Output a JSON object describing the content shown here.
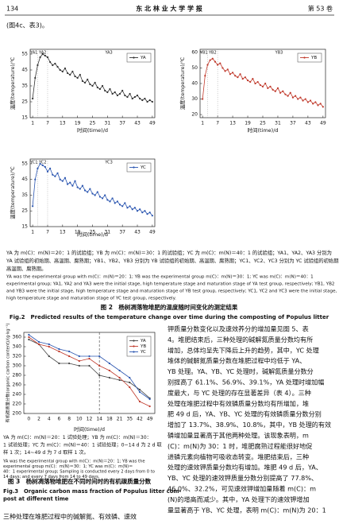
{
  "header": {
    "page": "134",
    "journal": "东 北 林 业 大 学 学 报",
    "volume": "第 53 卷"
  },
  "intro_line": "(图4c、表3)。",
  "figure2": {
    "note_zh": [
      "YA 为 m(C)：m(N)＝20：1 的试验组；YB 为 m(C)：m(N)＝30：1 的试验组；YC 为 m(C)：m(N)＝40：1 的试验组；YA1、YA2、YA3 分别为",
      "YA 试验组的初始期、高温期、腐熟期；YB1、YB2、YB3 分别为 YB 试验组的初始期、高温期、腐熟期；YC1、YC2、YC3 分别为 YC 试验组的初始期、",
      "高温期、腐熟期。"
    ],
    "note_en": [
      "YA was the experimental group with m(C)：m(N)＝20：1; YB was the experimental group m(C)：m(N)＝30：1; YC was m(C)：m(N)＝40：1",
      "experimental group; YA1, YA2 and YA3 were the initial stage, high temperature stage and maturation stage of YA test group, respectively; YB1, YB2",
      "and YB3 were the initial stage, high temperature stage and maturation stage of YB test group, respectively; YC1, YC2 and YC3 were the initial stage,",
      "high temperature stage and maturation stage of YC test group, respectively."
    ],
    "title_zh": "图 2　杨树凋落物堆肥的温度随时间变化的测定结果",
    "title_en": "Fig.2　Predicted results of the temperature change over time during the composting of Populus litter"
  },
  "figure3": {
    "note_zh": [
      "YA 为 m(C)：m(N)＝20：1 试验处理；YB 为 m(C)：m(N)＝30：",
      "1 试验处理；YC 为 m(C)：m(N)＝40：1 试验处理；0~14 d 为 2 d 取",
      "样 1 次；14~49 d 为 7 d 取样 1 次。"
    ],
    "note_en": [
      "YA was the experimental group with m(C)：m(N)＝20：1; YB was the",
      "experimental group m(C)：m(N)＝30：1; YC was m(C)：m(N)＝",
      "40：1 experimental group; Sampling is conducted every 2 days from 0 to",
      "14 days; and every 7 days from 14 to 49 days."
    ],
    "title_zh": "图 3　杨树凋落物堆肥在不同时间时的有机碳质量分数",
    "title_en": [
      "Fig.3　Organic carbon mass fraction of Populus litter com-",
      "post at different time"
    ]
  },
  "body_left": [
    "三种处理在堆肥过程中的碱解氮、有效磷、速效"
  ],
  "body_right": [
    "钾质量分数变化以及速效养分的增加量见图 5、表",
    "4。堆肥结束后，三种处理的碱解氮质量分数均有所",
    "增加，总体均呈先下降后上升的趋势，其中，YC 处理",
    "堆体的碱解氮质量分数在堆肥过程中均低于 YA、",
    "YB 处理。YA、YB、YC 处理时，碱解氮质量分数分",
    "别提高了 61.1%、56.9%、39.1%，YA 处理时增加幅",
    "度最大，与 YC 处理的存在显著差异（表 4）。三种",
    "处理在堆肥过程中有效磷质量分数均有所增加，堆",
    "肥 49 d 后，YA、YB、YC 处理的有效磷质量分数分别",
    "增加了 13.7%、38.9%、10.8%，其中，YB 处理的有效",
    "磷增加量显著高于其他两种处理。该现象表明，m",
    "(C)：m(N)为 30：1 时，堆肥腐熟过程能很好地促",
    "进磷元素向植物可吸收态转变。堆肥结束后，三种",
    "处理的速效钾质量分数均有增加。堆肥 49 d 后，YA、",
    "YB、YC 处理的速效钾质量分数分别提高了 77.8%、",
    "46.0%、32.2%，可见速效钾增加量随着 m(C)：m",
    "(N)的增高而减少。其中，YA 处理下的速效钾增加",
    "量显著高于 YB、YC 处理，表明 m(C)：m(N)为 20：1"
  ],
  "chart_data": [
    {
      "type": "line",
      "ylabel": "温度(temperature)/℃",
      "xlabel": "时间(time)/d",
      "x": [
        1,
        2,
        3,
        4,
        5,
        6,
        7,
        8,
        9,
        10,
        11,
        12,
        13,
        14,
        15,
        16,
        17,
        18,
        19,
        20,
        21,
        22,
        23,
        24,
        25,
        26,
        27,
        28,
        29,
        30,
        31,
        32,
        33,
        34,
        35,
        36,
        37,
        38,
        39,
        40,
        41,
        42,
        43,
        44,
        45,
        46,
        47,
        48,
        49
      ],
      "xlim": [
        0,
        50
      ],
      "xticks": [
        1,
        7,
        13,
        19,
        25,
        31,
        37,
        43,
        49
      ],
      "ylim": [
        15,
        58
      ],
      "yticks": [
        15,
        25,
        35,
        45,
        55
      ],
      "annotations": [
        "YA1",
        "YA2",
        "YA3"
      ],
      "legend": "upper right",
      "series": [
        {
          "name": "YA",
          "color": "#333333",
          "values": [
            27,
            40,
            48,
            53,
            55,
            54,
            53,
            50,
            48,
            49,
            47,
            45,
            44,
            46,
            43,
            42,
            44,
            41,
            40,
            42,
            38,
            37,
            39,
            36,
            35,
            37,
            34,
            33,
            35,
            32,
            31,
            33,
            30,
            31,
            29,
            30,
            32,
            29,
            28,
            30,
            27,
            28,
            29,
            27,
            26,
            27,
            25,
            26,
            25
          ]
        }
      ]
    },
    {
      "type": "line",
      "ylabel": "温度(temperature)/℃",
      "xlabel": "时间(time)/d",
      "x": [
        1,
        2,
        3,
        4,
        5,
        6,
        7,
        8,
        9,
        10,
        11,
        12,
        13,
        14,
        15,
        16,
        17,
        18,
        19,
        20,
        21,
        22,
        23,
        24,
        25,
        26,
        27,
        28,
        29,
        30,
        31,
        32,
        33,
        34,
        35,
        36,
        37,
        38,
        39,
        40,
        41,
        42,
        43,
        44,
        45,
        46,
        47,
        48,
        49
      ],
      "xlim": [
        0,
        50
      ],
      "xticks": [
        1,
        7,
        13,
        19,
        25,
        31,
        37,
        43,
        49
      ],
      "ylim": [
        18,
        62
      ],
      "yticks": [
        20,
        30,
        40,
        50,
        60
      ],
      "annotations": [
        "YB1",
        "YB2",
        "YB3"
      ],
      "legend": "upper right",
      "series": [
        {
          "name": "YB",
          "color": "#c0392b",
          "values": [
            30,
            45,
            52,
            55,
            56,
            54,
            52,
            53,
            50,
            48,
            49,
            46,
            47,
            45,
            44,
            46,
            43,
            44,
            42,
            41,
            43,
            40,
            41,
            39,
            38,
            40,
            37,
            38,
            36,
            35,
            37,
            34,
            35,
            33,
            32,
            34,
            31,
            32,
            30,
            31,
            29,
            30,
            28,
            29,
            27,
            28,
            26,
            27,
            25
          ]
        }
      ]
    },
    {
      "type": "line",
      "ylabel": "温度(temperature)/℃",
      "xlabel": "时间(time)/d",
      "x": [
        1,
        2,
        3,
        4,
        5,
        6,
        7,
        8,
        9,
        10,
        11,
        12,
        13,
        14,
        15,
        16,
        17,
        18,
        19,
        20,
        21,
        22,
        23,
        24,
        25,
        26,
        27,
        28,
        29,
        30,
        31,
        32,
        33,
        34,
        35,
        36,
        37,
        38,
        39,
        40,
        41,
        42,
        43,
        44,
        45,
        46,
        47,
        48,
        49
      ],
      "xlim": [
        0,
        50
      ],
      "xticks": [
        1,
        7,
        13,
        19,
        25,
        31,
        37,
        43,
        49
      ],
      "ylim": [
        15,
        58
      ],
      "yticks": [
        15,
        25,
        35,
        45,
        55
      ],
      "annotations": [
        "YC1",
        "YC2",
        "YC3"
      ],
      "legend": "upper right",
      "series": [
        {
          "name": "YC",
          "color": "#2a55b0",
          "values": [
            28,
            45,
            52,
            55,
            54,
            53,
            50,
            52,
            48,
            47,
            49,
            45,
            44,
            46,
            42,
            43,
            41,
            44,
            40,
            39,
            41,
            38,
            37,
            39,
            36,
            35,
            37,
            34,
            33,
            35,
            32,
            31,
            33,
            30,
            31,
            29,
            28,
            30,
            27,
            28,
            26,
            27,
            25,
            26,
            24,
            25,
            23,
            24,
            22
          ]
        }
      ]
    },
    {
      "type": "line",
      "ylabel": "有机碳质量分数(organic carbon content)/(g·kg⁻¹)",
      "xlabel": "时间(time)/d",
      "categories": [
        "0",
        "2",
        "4",
        "6",
        "8",
        "10",
        "12",
        "14",
        "18",
        "21",
        "35",
        "42",
        "49"
      ],
      "ylim": [
        200,
        370
      ],
      "yticks": [
        200,
        220,
        240,
        260,
        280,
        300,
        320,
        340,
        360
      ],
      "legend": "upper right",
      "series": [
        {
          "name": "YA",
          "color": "#444444",
          "values": [
            355,
            345,
            320,
            305,
            305,
            300,
            300,
            280,
            275,
            270,
            265,
            250,
            232
          ]
        },
        {
          "name": "YB",
          "color": "#c0392b",
          "values": [
            360,
            345,
            340,
            330,
            320,
            310,
            315,
            300,
            290,
            275,
            255,
            225,
            215
          ]
        },
        {
          "name": "YC",
          "color": "#2a55b0",
          "values": [
            365,
            350,
            345,
            335,
            330,
            320,
            320,
            320,
            305,
            290,
            275,
            245,
            230
          ]
        }
      ]
    }
  ]
}
